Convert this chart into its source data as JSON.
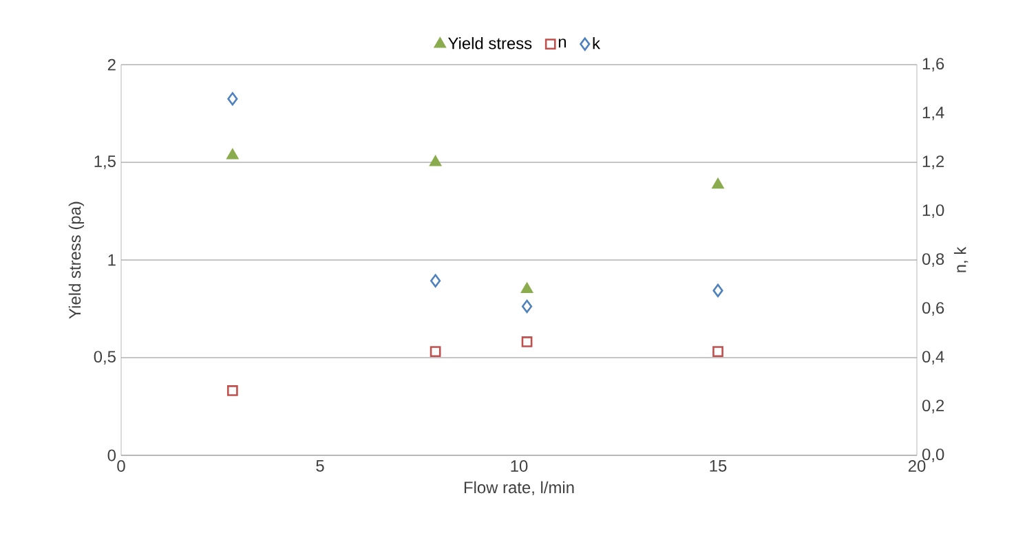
{
  "chart_data": {
    "type": "scatter",
    "xlabel": "Flow rate, l/min",
    "ylabel": "Yield stress (pa)",
    "y2label": "n, k",
    "x": [
      2.8,
      7.9,
      10.2,
      15
    ],
    "series": [
      {
        "name": "Yield stress",
        "color": "#8aac4f",
        "marker": "triangle",
        "values": [
          1.535,
          1.5,
          0.85,
          1.385
        ]
      },
      {
        "name": "n",
        "color": "#c0504d",
        "marker": "square",
        "axis": "y2",
        "values": [
          0.265,
          0.425,
          0.465,
          0.425
        ]
      },
      {
        "name": "k",
        "color": "#4f81bd",
        "marker": "diamond",
        "axis": "y2",
        "values": [
          1.46,
          0.715,
          0.61,
          0.675
        ]
      }
    ],
    "xlim": [
      0,
      20
    ],
    "xticks": [
      0,
      5,
      10,
      15,
      20
    ],
    "ylim": [
      0,
      2
    ],
    "yticks": [
      0,
      {
        "value": 0.5,
        "label": "0,5"
      },
      1,
      {
        "value": 1.5,
        "label": "1,5"
      },
      2
    ],
    "y2lim": [
      0,
      1.6
    ],
    "y2ticks": [
      {
        "value": 0,
        "label": "0,0"
      },
      {
        "value": 0.2,
        "label": "0,2"
      },
      {
        "value": 0.4,
        "label": "0,4"
      },
      {
        "value": 0.6,
        "label": "0,6"
      },
      {
        "value": 0.8,
        "label": "0,8"
      },
      {
        "value": 1.0,
        "label": "1,0"
      },
      {
        "value": 1.2,
        "label": "1,2"
      },
      {
        "value": 1.4,
        "label": "1,4"
      },
      {
        "value": 1.6,
        "label": "1,6"
      }
    ],
    "grid": "y",
    "legend": "top"
  }
}
